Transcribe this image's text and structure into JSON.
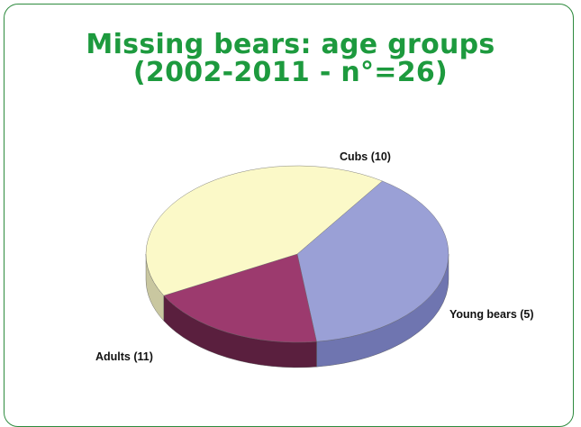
{
  "chart_data": {
    "type": "pie",
    "title_line1": "Missing bears: age groups",
    "title_line2": "(2002-2011 - n°=26)",
    "slices": [
      {
        "label": "Cubs (10)",
        "value": 10,
        "color": "#9aa0d6",
        "side": "#6f75b0"
      },
      {
        "label": "Young bears (5)",
        "value": 5,
        "color": "#9c3a6e",
        "side": "#5a1f3e"
      },
      {
        "label": "Adults (11)",
        "value": 11,
        "color": "#fbf9c8",
        "side": "#c9c7a0"
      }
    ],
    "total": 26
  }
}
